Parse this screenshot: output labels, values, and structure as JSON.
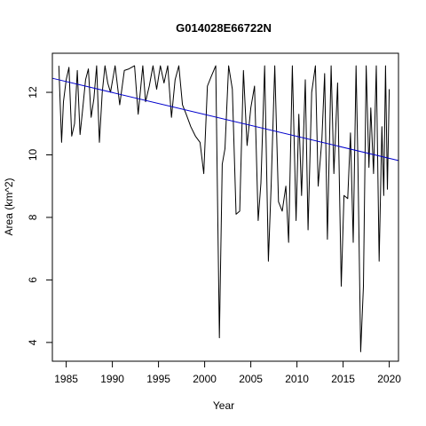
{
  "chart_data": {
    "type": "line",
    "title": "G014028E66722N",
    "xlabel": "Year",
    "ylabel": "Area (km^2)",
    "xlim": [
      1983.5,
      2021.0
    ],
    "ylim": [
      3.4,
      13.25
    ],
    "x_ticks": [
      1985,
      1990,
      1995,
      2000,
      2005,
      2010,
      2015,
      2020
    ],
    "x_tick_labels": [
      "1985",
      "1990",
      "1995",
      "2000",
      "2005",
      "2010",
      "2015",
      "2020"
    ],
    "y_ticks": [
      4,
      6,
      8,
      10,
      12
    ],
    "y_tick_labels": [
      "4",
      "6",
      "8",
      "10",
      "12"
    ],
    "grid": false,
    "colors": {
      "series": "#000000",
      "trend": "#0000cc",
      "frame": "#000000"
    },
    "series": [
      {
        "values": [
          [
            1984.2,
            12.85
          ],
          [
            1984.5,
            10.4
          ],
          [
            1984.7,
            11.7
          ],
          [
            1985.0,
            12.4
          ],
          [
            1985.3,
            12.8
          ],
          [
            1985.6,
            10.6
          ],
          [
            1985.9,
            11.0
          ],
          [
            1986.2,
            12.7
          ],
          [
            1986.5,
            10.65
          ],
          [
            1986.8,
            11.5
          ],
          [
            1987.1,
            12.4
          ],
          [
            1987.4,
            12.75
          ],
          [
            1987.7,
            11.2
          ],
          [
            1988.0,
            11.8
          ],
          [
            1988.3,
            12.85
          ],
          [
            1988.6,
            10.4
          ],
          [
            1988.9,
            12.0
          ],
          [
            1989.2,
            12.85
          ],
          [
            1989.5,
            12.3
          ],
          [
            1989.8,
            12.0
          ],
          [
            1990.3,
            12.85
          ],
          [
            1990.8,
            11.6
          ],
          [
            1991.3,
            12.7
          ],
          [
            1991.8,
            12.75
          ],
          [
            1992.4,
            12.85
          ],
          [
            1992.8,
            11.3
          ],
          [
            1993.3,
            12.85
          ],
          [
            1993.6,
            11.7
          ],
          [
            1994.0,
            12.2
          ],
          [
            1994.4,
            12.85
          ],
          [
            1994.8,
            12.1
          ],
          [
            1995.2,
            12.85
          ],
          [
            1995.6,
            12.3
          ],
          [
            1996.0,
            12.85
          ],
          [
            1996.4,
            11.2
          ],
          [
            1996.8,
            12.4
          ],
          [
            1997.2,
            12.85
          ],
          [
            1997.6,
            11.6
          ],
          [
            1998.0,
            11.3
          ],
          [
            1998.5,
            10.9
          ],
          [
            1999.0,
            10.6
          ],
          [
            1999.5,
            10.4
          ],
          [
            1999.9,
            9.4
          ],
          [
            2000.3,
            12.2
          ],
          [
            2000.7,
            12.5
          ],
          [
            2001.2,
            12.85
          ],
          [
            2001.6,
            4.15
          ],
          [
            2001.9,
            9.7
          ],
          [
            2002.2,
            10.2
          ],
          [
            2002.6,
            12.85
          ],
          [
            2003.0,
            12.1
          ],
          [
            2003.4,
            8.1
          ],
          [
            2003.8,
            8.2
          ],
          [
            2004.2,
            12.7
          ],
          [
            2004.6,
            10.3
          ],
          [
            2005.0,
            11.5
          ],
          [
            2005.4,
            12.2
          ],
          [
            2005.8,
            7.9
          ],
          [
            2006.1,
            9.1
          ],
          [
            2006.5,
            12.85
          ],
          [
            2006.9,
            6.6
          ],
          [
            2007.2,
            9.0
          ],
          [
            2007.6,
            12.85
          ],
          [
            2008.0,
            8.5
          ],
          [
            2008.4,
            8.2
          ],
          [
            2008.8,
            9.0
          ],
          [
            2009.1,
            7.2
          ],
          [
            2009.5,
            12.85
          ],
          [
            2009.9,
            7.9
          ],
          [
            2010.2,
            11.3
          ],
          [
            2010.5,
            8.7
          ],
          [
            2010.9,
            12.4
          ],
          [
            2011.2,
            7.6
          ],
          [
            2011.6,
            12.0
          ],
          [
            2012.0,
            12.85
          ],
          [
            2012.3,
            9.0
          ],
          [
            2012.7,
            10.5
          ],
          [
            2013.0,
            12.6
          ],
          [
            2013.3,
            7.3
          ],
          [
            2013.7,
            12.85
          ],
          [
            2014.0,
            9.4
          ],
          [
            2014.4,
            12.3
          ],
          [
            2014.8,
            5.8
          ],
          [
            2015.1,
            8.7
          ],
          [
            2015.5,
            8.6
          ],
          [
            2015.8,
            10.7
          ],
          [
            2016.1,
            7.2
          ],
          [
            2016.4,
            12.85
          ],
          [
            2016.6,
            9.9
          ],
          [
            2016.9,
            3.7
          ],
          [
            2017.2,
            5.8
          ],
          [
            2017.5,
            12.85
          ],
          [
            2017.8,
            9.6
          ],
          [
            2018.0,
            11.5
          ],
          [
            2018.3,
            9.4
          ],
          [
            2018.6,
            12.85
          ],
          [
            2018.9,
            6.6
          ],
          [
            2019.2,
            10.9
          ],
          [
            2019.4,
            8.7
          ],
          [
            2019.6,
            12.85
          ],
          [
            2019.8,
            8.9
          ],
          [
            2020.0,
            12.1
          ]
        ]
      }
    ],
    "trend_line": {
      "x": [
        1983.5,
        2021.0
      ],
      "y": [
        12.45,
        9.82
      ]
    }
  }
}
